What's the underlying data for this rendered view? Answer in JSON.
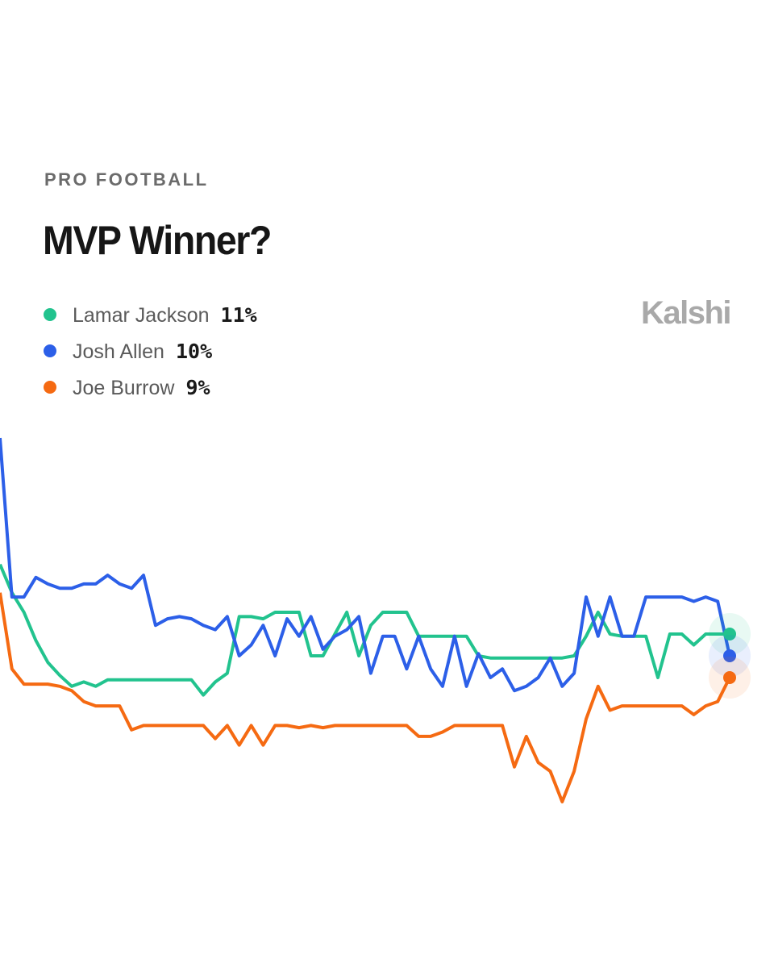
{
  "chart_data": {
    "type": "line",
    "category_label": "PRO FOOTBALL",
    "title": "MVP Winner?",
    "brand": "Kalshi",
    "ylim": [
      0,
      20
    ],
    "series": [
      {
        "name": "Lamar Jackson",
        "color": "#22c38e",
        "value_label": "11%",
        "values": [
          14.2,
          12.9,
          12.0,
          10.7,
          9.7,
          9.1,
          8.6,
          8.8,
          8.6,
          8.9,
          8.9,
          8.9,
          8.9,
          8.9,
          8.9,
          8.9,
          8.9,
          8.2,
          8.8,
          9.2,
          11.8,
          11.8,
          11.7,
          12.0,
          12.0,
          12.0,
          10.0,
          10.0,
          11.0,
          12.0,
          10.0,
          11.4,
          12.0,
          12.0,
          12.0,
          10.9,
          10.9,
          10.9,
          10.9,
          10.9,
          10.0,
          9.9,
          9.9,
          9.9,
          9.9,
          9.9,
          9.9,
          9.9,
          10.0,
          10.9,
          12.0,
          11.0,
          10.9,
          10.9,
          10.9,
          9.0,
          11.0,
          11.0,
          10.5,
          11.0,
          11.0,
          11
        ]
      },
      {
        "name": "Josh Allen",
        "color": "#2c5fe8",
        "value_label": "10%",
        "values": [
          20.0,
          12.7,
          12.7,
          13.6,
          13.3,
          13.1,
          13.1,
          13.3,
          13.3,
          13.7,
          13.3,
          13.1,
          13.7,
          11.4,
          11.7,
          11.8,
          11.7,
          11.4,
          11.2,
          11.8,
          10.0,
          10.5,
          11.4,
          10.0,
          11.7,
          10.9,
          11.8,
          10.3,
          10.9,
          11.2,
          11.8,
          9.2,
          10.9,
          10.9,
          9.4,
          10.9,
          9.4,
          8.6,
          10.9,
          8.6,
          10.1,
          9.0,
          9.4,
          8.4,
          8.6,
          9.0,
          9.9,
          8.6,
          9.2,
          12.7,
          10.9,
          12.7,
          10.9,
          10.9,
          12.7,
          12.7,
          12.7,
          12.7,
          12.5,
          12.7,
          12.5,
          10
        ]
      },
      {
        "name": "Joe Burrow",
        "color": "#f56a12",
        "value_label": "9%",
        "values": [
          12.9,
          9.4,
          8.7,
          8.7,
          8.7,
          8.6,
          8.4,
          7.9,
          7.7,
          7.7,
          7.7,
          6.6,
          6.8,
          6.8,
          6.8,
          6.8,
          6.8,
          6.8,
          6.2,
          6.8,
          5.9,
          6.8,
          5.9,
          6.8,
          6.8,
          6.7,
          6.8,
          6.7,
          6.8,
          6.8,
          6.8,
          6.8,
          6.8,
          6.8,
          6.8,
          6.3,
          6.3,
          6.5,
          6.8,
          6.8,
          6.8,
          6.8,
          6.8,
          4.9,
          6.3,
          5.1,
          4.7,
          3.3,
          4.7,
          7.1,
          8.6,
          7.5,
          7.7,
          7.7,
          7.7,
          7.7,
          7.7,
          7.7,
          7.3,
          7.7,
          7.9,
          9
        ]
      }
    ]
  }
}
